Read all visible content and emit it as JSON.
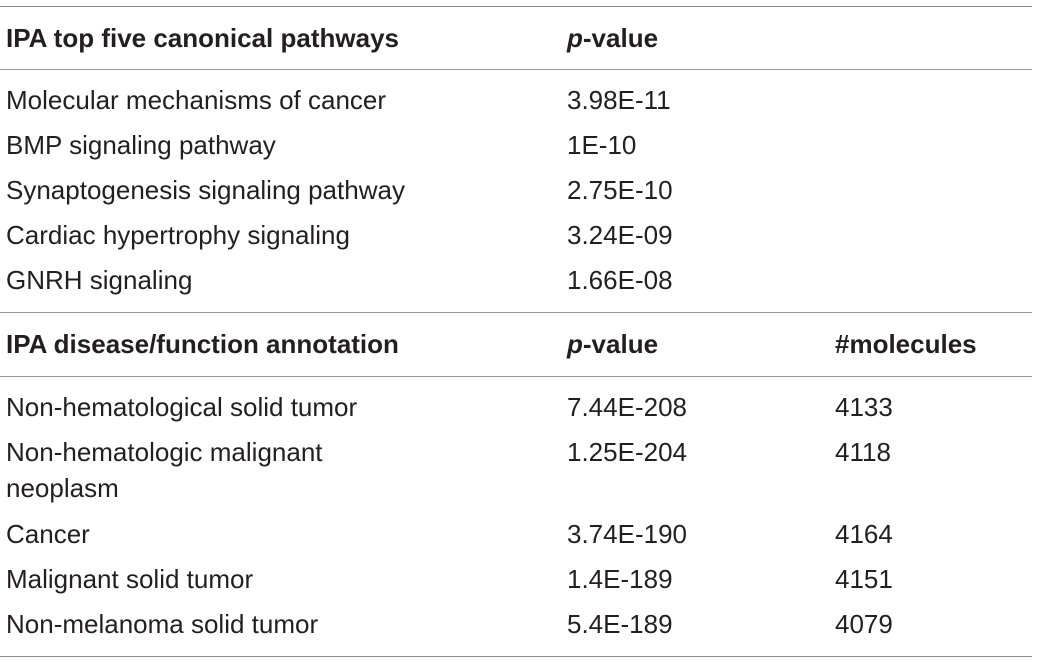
{
  "section1": {
    "header": {
      "col1": "IPA top five canonical pathways",
      "col2_prefix": "p",
      "col2_suffix": "-value"
    },
    "rows": [
      {
        "name": "Molecular mechanisms of cancer",
        "pvalue": "3.98E-11"
      },
      {
        "name": "BMP signaling pathway",
        "pvalue": "1E-10"
      },
      {
        "name": "Synaptogenesis signaling pathway",
        "pvalue": "2.75E-10"
      },
      {
        "name": "Cardiac hypertrophy signaling",
        "pvalue": "3.24E-09"
      },
      {
        "name": "GNRH signaling",
        "pvalue": "1.66E-08"
      }
    ]
  },
  "section2": {
    "header": {
      "col1": "IPA disease/function annotation",
      "col2_prefix": "p",
      "col2_suffix": "-value",
      "col3": "#molecules"
    },
    "rows": [
      {
        "name": "Non-hematological solid tumor",
        "pvalue": "7.44E-208",
        "molecules": "4133"
      },
      {
        "name": "Non-hematologic malignant neoplasm",
        "pvalue": "1.25E-204",
        "molecules": "4118"
      },
      {
        "name": "Cancer",
        "pvalue": "3.74E-190",
        "molecules": "4164"
      },
      {
        "name": "Malignant solid tumor",
        "pvalue": "1.4E-189",
        "molecules": "4151"
      },
      {
        "name": "Non-melanoma solid tumor",
        "pvalue": "5.4E-189",
        "molecules": "4079"
      }
    ]
  }
}
